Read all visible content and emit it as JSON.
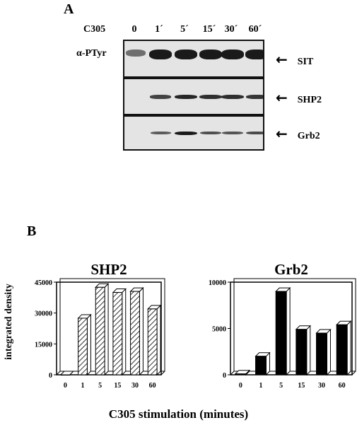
{
  "panel_a": {
    "letter": "A",
    "treatment_label": "C305",
    "lanes": [
      "0",
      "1´",
      "5´",
      "15´",
      "30´",
      "60´"
    ],
    "antibody_label": "α-PTyr",
    "blots": [
      {
        "name": "SIT",
        "intensity": [
          0.35,
          1.0,
          1.0,
          1.0,
          1.0,
          1.0
        ]
      },
      {
        "name": "SHP2",
        "intensity": [
          0.0,
          0.7,
          0.9,
          0.85,
          0.85,
          0.8
        ]
      },
      {
        "name": "Grb2",
        "intensity": [
          0.0,
          0.5,
          1.0,
          0.6,
          0.55,
          0.65
        ]
      }
    ]
  },
  "panel_b": {
    "letter": "B",
    "ylabel": "integrated density",
    "xlabel": "C305 stimulation (minutes)"
  },
  "chart_data": [
    {
      "type": "bar",
      "title": "SHP2",
      "categories": [
        "0",
        "1",
        "5",
        "15",
        "30",
        "60"
      ],
      "values": [
        0,
        27500,
        42500,
        40000,
        40500,
        32000
      ],
      "ylim": [
        0,
        45000
      ],
      "yticks": [
        "0",
        "15000",
        "30000",
        "45000"
      ],
      "ytick_values": [
        0,
        15000,
        30000,
        45000
      ],
      "bar_style": "hatched"
    },
    {
      "type": "bar",
      "title": "Grb2",
      "categories": [
        "0",
        "1",
        "5",
        "15",
        "30",
        "60"
      ],
      "values": [
        100,
        2000,
        9000,
        4900,
        4500,
        5400
      ],
      "ylim": [
        0,
        10000
      ],
      "yticks": [
        "0",
        "5000",
        "10000"
      ],
      "ytick_values": [
        0,
        5000,
        10000
      ],
      "bar_style": "solid"
    }
  ]
}
